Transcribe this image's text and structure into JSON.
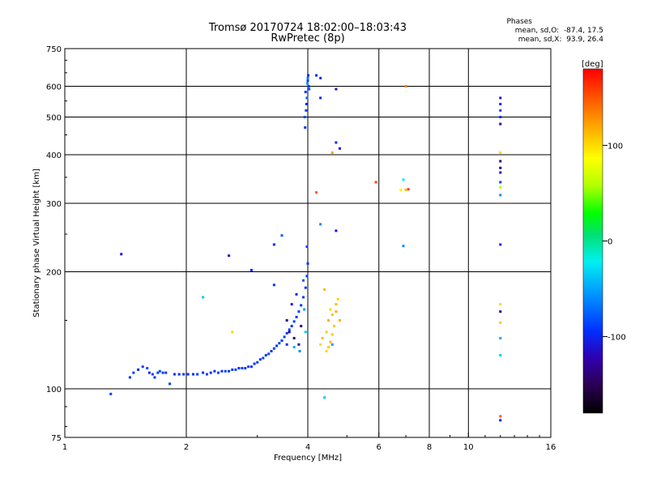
{
  "header": {
    "title_line1": "Tromsø 20170724 18:02:00–18:03:43",
    "title_line2": "RwPretec (8p)",
    "phases_heading": "Phases",
    "phases_line_o": "mean, sd,O:  -87.4, 17.5",
    "phases_line_x": "mean, sd,X:  93.9, 26.4"
  },
  "chart_data": {
    "type": "scatter",
    "xlabel": "Frequency [MHz]",
    "ylabel": "Stationary phase Virtual Height [km]",
    "xscale": "log",
    "yscale": "log",
    "xlim": [
      1,
      16
    ],
    "ylim": [
      75,
      750
    ],
    "x_ticks": [
      1,
      2,
      4,
      6,
      8,
      10,
      16
    ],
    "y_ticks": [
      75,
      100,
      200,
      300,
      400,
      500,
      600,
      750
    ],
    "x_gridlines": [
      2,
      4,
      6,
      8,
      10
    ],
    "y_gridlines": [
      100,
      200,
      300,
      400,
      500,
      600
    ],
    "grid": true,
    "colorbar": {
      "label": "[deg]",
      "range": [
        -180,
        180
      ],
      "ticks": [
        100,
        0,
        -100
      ]
    },
    "points": [
      [
        1.3,
        97,
        -90
      ],
      [
        1.38,
        222,
        -110
      ],
      [
        1.45,
        107,
        -95
      ],
      [
        1.48,
        110,
        -90
      ],
      [
        1.52,
        112,
        -100
      ],
      [
        1.56,
        114,
        -90
      ],
      [
        1.6,
        113,
        -85
      ],
      [
        1.62,
        110,
        -100
      ],
      [
        1.65,
        109,
        -90
      ],
      [
        1.67,
        107,
        -95
      ],
      [
        1.7,
        110,
        -90
      ],
      [
        1.72,
        111,
        -85
      ],
      [
        1.75,
        110,
        -90
      ],
      [
        1.78,
        110,
        -92
      ],
      [
        1.82,
        103,
        -90
      ],
      [
        1.87,
        109,
        -95
      ],
      [
        1.92,
        109,
        -95
      ],
      [
        1.97,
        109,
        -95
      ],
      [
        2.02,
        109,
        -95
      ],
      [
        2.08,
        109,
        -95
      ],
      [
        2.13,
        109,
        -90
      ],
      [
        2.2,
        110,
        -95
      ],
      [
        2.25,
        109,
        -90
      ],
      [
        2.3,
        110,
        -95
      ],
      [
        2.35,
        111,
        -95
      ],
      [
        2.4,
        110,
        -90
      ],
      [
        2.45,
        111,
        -95
      ],
      [
        2.5,
        111,
        -90
      ],
      [
        2.55,
        111,
        -95
      ],
      [
        2.6,
        112,
        -95
      ],
      [
        2.65,
        112,
        -90
      ],
      [
        2.7,
        113,
        -95
      ],
      [
        2.75,
        113,
        -90
      ],
      [
        2.8,
        113,
        -95
      ],
      [
        2.85,
        114,
        -90
      ],
      [
        2.9,
        114,
        -95
      ],
      [
        2.95,
        116,
        -95
      ],
      [
        3.0,
        117,
        -90
      ],
      [
        3.05,
        119,
        -95
      ],
      [
        3.1,
        120,
        -90
      ],
      [
        3.15,
        122,
        -95
      ],
      [
        3.2,
        123,
        -90
      ],
      [
        3.25,
        125,
        -95
      ],
      [
        3.3,
        127,
        -90
      ],
      [
        3.35,
        129,
        -95
      ],
      [
        3.4,
        131,
        -90
      ],
      [
        3.45,
        133,
        -95
      ],
      [
        3.5,
        136,
        -90
      ],
      [
        3.55,
        139,
        -95
      ],
      [
        3.6,
        142,
        -90
      ],
      [
        3.65,
        145,
        -95
      ],
      [
        3.7,
        149,
        -90
      ],
      [
        3.75,
        153,
        -95
      ],
      [
        3.8,
        158,
        -90
      ],
      [
        3.85,
        164,
        -95
      ],
      [
        3.9,
        172,
        -90
      ],
      [
        3.95,
        182,
        -95
      ],
      [
        3.98,
        195,
        -90
      ],
      [
        4.0,
        210,
        -95
      ],
      [
        3.98,
        232,
        -90
      ],
      [
        3.6,
        140,
        -130
      ],
      [
        3.7,
        135,
        -140
      ],
      [
        3.8,
        130,
        -120
      ],
      [
        3.55,
        150,
        -125
      ],
      [
        3.85,
        145,
        -135
      ],
      [
        3.65,
        165,
        -110
      ],
      [
        3.75,
        175,
        -100
      ],
      [
        3.9,
        190,
        -80
      ],
      [
        3.82,
        125,
        -60
      ],
      [
        3.7,
        128,
        -50
      ],
      [
        3.95,
        140,
        -40
      ],
      [
        3.92,
        160,
        -55
      ],
      [
        2.2,
        172,
        -40
      ],
      [
        2.6,
        140,
        110
      ],
      [
        2.55,
        220,
        -110
      ],
      [
        2.9,
        202,
        -100
      ],
      [
        3.3,
        235,
        -100
      ],
      [
        3.45,
        248,
        -80
      ],
      [
        3.3,
        185,
        -95
      ],
      [
        3.55,
        130,
        -95
      ],
      [
        3.95,
        580,
        -95
      ],
      [
        4.0,
        620,
        -90
      ],
      [
        3.97,
        540,
        -100
      ],
      [
        3.93,
        500,
        -85
      ],
      [
        4.02,
        600,
        -95
      ],
      [
        3.98,
        560,
        -80
      ],
      [
        3.96,
        520,
        -90
      ],
      [
        4.01,
        640,
        -100
      ],
      [
        3.94,
        470,
        -95
      ],
      [
        4.03,
        590,
        -85
      ],
      [
        3.99,
        610,
        -60
      ],
      [
        4.0,
        630,
        -70
      ],
      [
        4.2,
        640,
        -100
      ],
      [
        4.3,
        630,
        -100
      ],
      [
        4.3,
        560,
        -100
      ],
      [
        4.7,
        590,
        -110
      ],
      [
        4.7,
        430,
        -100
      ],
      [
        4.8,
        415,
        -110
      ],
      [
        4.6,
        405,
        130
      ],
      [
        4.2,
        320,
        150
      ],
      [
        4.3,
        265,
        -60
      ],
      [
        4.7,
        255,
        -110
      ],
      [
        5.9,
        340,
        160
      ],
      [
        6.8,
        325,
        100
      ],
      [
        6.9,
        345,
        -20
      ],
      [
        7.0,
        325,
        120
      ],
      [
        7.1,
        326,
        160
      ],
      [
        7.0,
        600,
        140
      ],
      [
        6.9,
        233,
        -60
      ],
      [
        4.6,
        130,
        -55
      ],
      [
        4.4,
        95,
        -40
      ],
      [
        4.3,
        130,
        110
      ],
      [
        4.35,
        135,
        120
      ],
      [
        4.45,
        140,
        115
      ],
      [
        4.5,
        150,
        125
      ],
      [
        4.55,
        160,
        110
      ],
      [
        4.6,
        155,
        120
      ],
      [
        4.65,
        145,
        115
      ],
      [
        4.7,
        165,
        120
      ],
      [
        4.75,
        170,
        110
      ],
      [
        4.8,
        150,
        125
      ],
      [
        4.5,
        128,
        115
      ],
      [
        4.55,
        132,
        120
      ],
      [
        4.6,
        138,
        115
      ],
      [
        4.7,
        158,
        125
      ],
      [
        4.4,
        180,
        120
      ],
      [
        4.45,
        125,
        110
      ],
      [
        12.0,
        560,
        -110
      ],
      [
        12.0,
        540,
        -100
      ],
      [
        12.0,
        520,
        -90
      ],
      [
        12.0,
        500,
        -95
      ],
      [
        12.0,
        480,
        -120
      ],
      [
        12.0,
        405,
        110
      ],
      [
        12.0,
        385,
        -130
      ],
      [
        12.0,
        370,
        -140
      ],
      [
        12.0,
        360,
        -110
      ],
      [
        12.0,
        340,
        -90
      ],
      [
        12.0,
        330,
        60
      ],
      [
        12.0,
        315,
        -60
      ],
      [
        12.0,
        235,
        -100
      ],
      [
        12.0,
        165,
        110
      ],
      [
        12.0,
        158,
        -140
      ],
      [
        12.0,
        148,
        115
      ],
      [
        12.0,
        135,
        -50
      ],
      [
        12.0,
        122,
        -40
      ],
      [
        12.0,
        85,
        150
      ],
      [
        12.0,
        83,
        -110
      ]
    ]
  }
}
